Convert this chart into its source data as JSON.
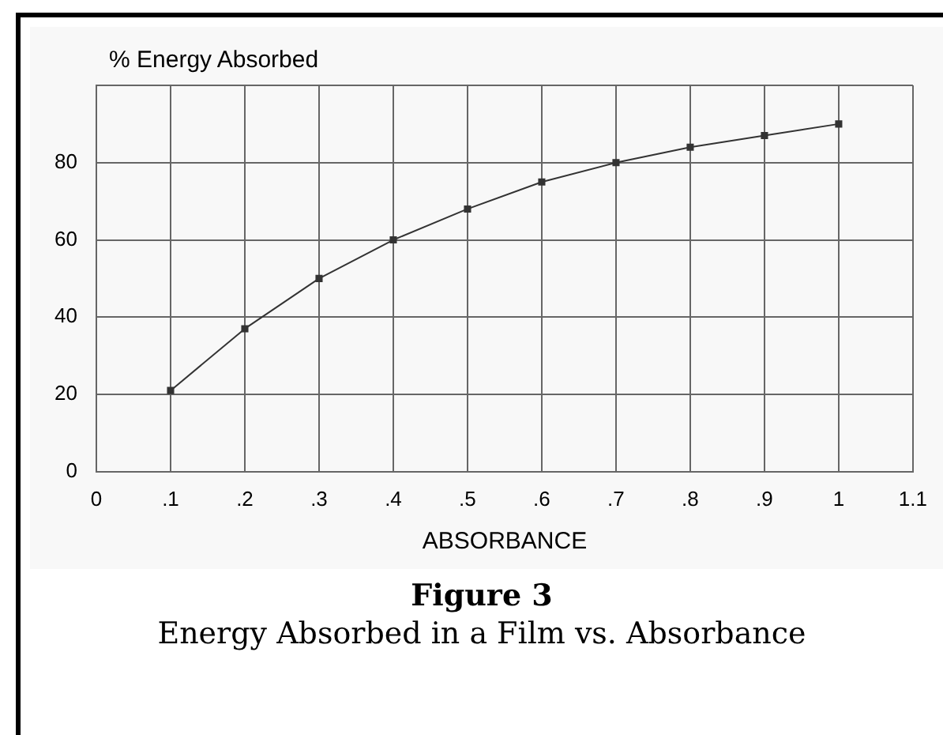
{
  "chart_data": {
    "type": "line",
    "title": "Figure 3",
    "subtitle": "Energy Absorbed in a Film vs. Absorbance",
    "xlabel": "ABSORBANCE",
    "ylabel": "% Energy Absorbed",
    "x": [
      0.1,
      0.2,
      0.3,
      0.4,
      0.5,
      0.6,
      0.7,
      0.8,
      0.9,
      1
    ],
    "series": [
      {
        "color": "#333333",
        "values": [
          21,
          37,
          50,
          60,
          68,
          75,
          80,
          84,
          87,
          90
        ]
      }
    ],
    "xlim": [
      0,
      1.1
    ],
    "xticks": [
      0,
      {
        "value": 0.1,
        "label": ".1"
      },
      {
        "value": 0.2,
        "label": ".2"
      },
      {
        "value": 0.3,
        "label": ".3"
      },
      {
        "value": 0.4,
        "label": ".4"
      },
      {
        "value": 0.5,
        "label": ".5"
      },
      {
        "value": 0.6,
        "label": ".6"
      },
      {
        "value": 0.7,
        "label": ".7"
      },
      {
        "value": 0.8,
        "label": ".8"
      },
      {
        "value": 0.9,
        "label": ".9"
      },
      1,
      1.1
    ],
    "ylim": [
      0,
      100
    ],
    "yticks": [
      0,
      20,
      40,
      60,
      80,
      {
        "value": 100,
        "label": null
      }
    ],
    "grid": true,
    "marker": "square",
    "line_style": "solid"
  }
}
